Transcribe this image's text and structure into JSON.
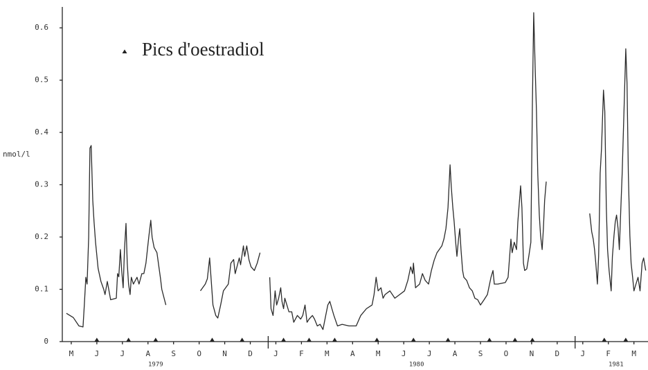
{
  "chart_data": {
    "type": "line",
    "y_label": "nmol/l",
    "xlim": [
      -0.35,
      22.55
    ],
    "ylim": [
      0,
      0.64
    ],
    "yticks": [
      0,
      0.1,
      0.2,
      0.3,
      0.4,
      0.5,
      0.6
    ],
    "xticks": [
      {
        "value": 0,
        "label": "M"
      },
      {
        "value": 1,
        "label": "J"
      },
      {
        "value": 2,
        "label": "J"
      },
      {
        "value": 3,
        "label": "A"
      },
      {
        "value": 4,
        "label": "S"
      },
      {
        "value": 5,
        "label": "O"
      },
      {
        "value": 6,
        "label": "N"
      },
      {
        "value": 7,
        "label": "D"
      },
      {
        "value": 8,
        "label": "J"
      },
      {
        "value": 9,
        "label": "F"
      },
      {
        "value": 10,
        "label": "M"
      },
      {
        "value": 11,
        "label": "A"
      },
      {
        "value": 12,
        "label": "M"
      },
      {
        "value": 13,
        "label": "J"
      },
      {
        "value": 14,
        "label": "J"
      },
      {
        "value": 15,
        "label": "A"
      },
      {
        "value": 16,
        "label": "S"
      },
      {
        "value": 17,
        "label": "O"
      },
      {
        "value": 18,
        "label": "N"
      },
      {
        "value": 19,
        "label": "D"
      },
      {
        "value": 20,
        "label": "J"
      },
      {
        "value": 21,
        "label": "F"
      },
      {
        "value": 22,
        "label": "M"
      }
    ],
    "year_labels": [
      {
        "value": 3.3,
        "label": "1979"
      },
      {
        "value": 13.5,
        "label": "1980"
      },
      {
        "value": 21.3,
        "label": "1981"
      }
    ],
    "year_dividers": [
      7.7,
      19.7
    ],
    "legend": "upper left",
    "series": [
      {
        "color": "#2a2a2a",
        "x": [
          -0.19,
          0.08,
          0.3,
          0.46,
          0.51,
          0.57,
          0.62,
          0.68,
          0.73,
          0.78,
          0.84,
          0.89,
          0.95,
          1.05,
          1.16,
          1.27,
          1.32,
          1.41,
          1.54,
          1.76,
          1.81,
          1.86,
          1.92,
          1.97,
          2.03,
          2.08,
          2.14,
          2.19,
          2.24,
          2.3,
          2.35,
          2.43,
          2.57,
          2.65,
          2.76,
          2.84,
          2.92,
          3.03,
          3.11,
          3.16,
          3.24,
          3.35,
          3.49,
          3.54,
          3.7,
          4.4,
          5.05,
          5.24,
          5.32,
          5.41,
          5.54,
          5.65,
          5.73,
          5.84,
          5.95,
          6.14,
          6.24,
          6.35,
          6.41,
          6.57,
          6.62,
          6.73,
          6.78,
          6.86,
          6.95,
          7.03,
          7.16,
          7.27,
          7.38,
          7.57,
          7.76,
          7.81,
          7.89,
          7.97,
          8.03,
          8.11,
          8.19,
          8.24,
          8.3,
          8.35,
          8.43,
          8.51,
          8.62,
          8.7,
          8.84,
          8.97,
          9.05,
          9.14,
          9.22,
          9.3,
          9.43,
          9.51,
          9.62,
          9.73,
          9.84,
          9.95,
          10.03,
          10.11,
          10.19,
          10.27,
          10.41,
          10.59,
          10.86,
          11.14,
          11.32,
          11.54,
          11.76,
          11.84,
          11.92,
          12.0,
          12.11,
          12.19,
          12.27,
          12.46,
          12.65,
          12.84,
          13.03,
          13.16,
          13.27,
          13.35,
          13.38,
          13.46,
          13.62,
          13.73,
          13.84,
          13.97,
          14.08,
          14.19,
          14.3,
          14.49,
          14.57,
          14.65,
          14.73,
          14.81,
          14.86,
          14.92,
          14.97,
          15.03,
          15.08,
          15.14,
          15.19,
          15.24,
          15.3,
          15.35,
          15.46,
          15.57,
          15.68,
          15.78,
          15.89,
          16.0,
          16.14,
          16.27,
          16.41,
          16.49,
          16.54,
          16.68,
          16.97,
          17.08,
          17.19,
          17.24,
          17.32,
          17.41,
          17.46,
          17.57,
          17.62,
          17.68,
          17.73,
          17.81,
          17.89,
          17.97,
          18.03,
          18.08,
          18.14,
          18.19,
          18.24,
          18.3,
          18.35,
          18.41,
          18.46,
          18.51,
          18.57,
          19.4,
          20.27,
          20.35,
          20.41,
          20.46,
          20.51,
          20.57,
          20.62,
          20.68,
          20.73,
          20.81,
          20.86,
          20.92,
          20.97,
          21.03,
          21.11,
          21.16,
          21.22,
          21.27,
          21.32,
          21.38,
          21.43,
          21.49,
          21.54,
          21.62,
          21.68,
          21.73,
          21.78,
          21.84,
          21.89,
          21.95,
          22.0,
          22.08,
          22.16,
          22.24,
          22.32,
          22.38,
          22.46
        ],
        "values": [
          0.054,
          0.046,
          0.03,
          0.028,
          0.07,
          0.123,
          0.11,
          0.2,
          0.37,
          0.375,
          0.27,
          0.23,
          0.19,
          0.14,
          0.115,
          0.1,
          0.09,
          0.115,
          0.08,
          0.083,
          0.13,
          0.124,
          0.176,
          0.137,
          0.103,
          0.176,
          0.226,
          0.15,
          0.11,
          0.09,
          0.123,
          0.11,
          0.123,
          0.11,
          0.13,
          0.13,
          0.15,
          0.2,
          0.232,
          0.2,
          0.18,
          0.17,
          0.12,
          0.1,
          0.07,
          null,
          0.097,
          0.11,
          0.12,
          0.16,
          0.07,
          0.05,
          0.045,
          0.07,
          0.097,
          0.11,
          0.15,
          0.157,
          0.13,
          0.16,
          0.147,
          0.183,
          0.163,
          0.183,
          0.156,
          0.143,
          0.136,
          0.15,
          0.17,
          null,
          0.123,
          0.063,
          0.05,
          0.097,
          0.07,
          0.083,
          0.103,
          0.077,
          0.063,
          0.083,
          0.07,
          0.057,
          0.057,
          0.037,
          0.05,
          0.043,
          0.05,
          0.07,
          0.037,
          0.043,
          0.05,
          0.043,
          0.03,
          0.033,
          0.023,
          0.05,
          0.07,
          0.077,
          0.063,
          0.05,
          0.03,
          0.033,
          0.03,
          0.03,
          0.05,
          0.063,
          0.07,
          0.09,
          0.123,
          0.097,
          0.103,
          0.083,
          0.09,
          0.097,
          0.083,
          0.09,
          0.097,
          0.117,
          0.143,
          0.13,
          0.15,
          0.103,
          0.11,
          0.13,
          0.117,
          0.11,
          0.136,
          0.156,
          0.17,
          0.183,
          0.196,
          0.216,
          0.256,
          0.338,
          0.295,
          0.256,
          0.229,
          0.19,
          0.163,
          0.196,
          0.216,
          0.176,
          0.136,
          0.123,
          0.117,
          0.103,
          0.097,
          0.083,
          0.08,
          0.07,
          0.08,
          0.09,
          0.123,
          0.136,
          0.11,
          0.11,
          0.113,
          0.123,
          0.196,
          0.17,
          0.19,
          0.176,
          0.229,
          0.298,
          0.256,
          0.15,
          0.136,
          0.139,
          0.163,
          0.19,
          0.454,
          0.629,
          0.52,
          0.44,
          0.32,
          0.242,
          0.203,
          0.176,
          0.216,
          0.27,
          0.306,
          null,
          0.245,
          0.21,
          0.196,
          0.176,
          0.15,
          0.11,
          0.163,
          0.322,
          0.368,
          0.481,
          0.44,
          0.256,
          0.176,
          0.136,
          0.097,
          0.163,
          0.203,
          0.229,
          0.242,
          0.216,
          0.176,
          0.256,
          0.322,
          0.454,
          0.56,
          0.494,
          0.322,
          0.203,
          0.15,
          0.123,
          0.097,
          0.11,
          0.123,
          0.097,
          0.15,
          0.16,
          0.136
        ]
      },
      {
        "name": "Pics d'oestradiol",
        "color": "#222222",
        "x": [
          1.0,
          2.24,
          3.3,
          5.51,
          6.68,
          8.3,
          9.3,
          10.3,
          11.95,
          13.38,
          14.73,
          16.35,
          17.35,
          18.03,
          20.84,
          21.68
        ],
        "values": [
          0,
          0,
          0,
          0,
          0,
          0,
          0,
          0,
          0,
          0,
          0,
          0,
          0,
          0,
          0,
          0
        ]
      }
    ]
  }
}
